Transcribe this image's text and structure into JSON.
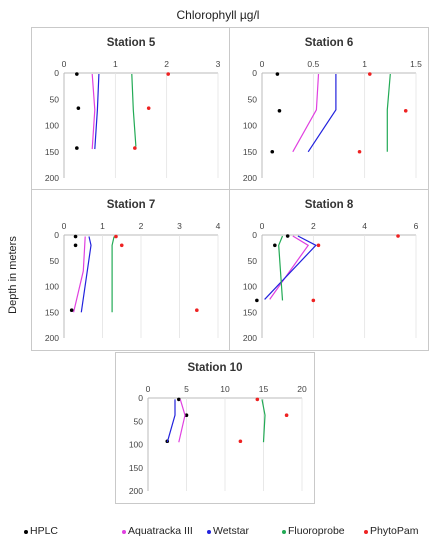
{
  "chart_data": {
    "type": "line",
    "title": "Chlorophyll µg/l",
    "ylabel": "Depth in meters",
    "legend_position": "bottom",
    "series_styles": [
      {
        "name": "HPLC",
        "color": "#000000",
        "kind": "point"
      },
      {
        "name": "Aquatracka III",
        "color": "#e040e0",
        "kind": "line"
      },
      {
        "name": "Wetstar",
        "color": "#2222dd",
        "kind": "line"
      },
      {
        "name": "Fluoroprobe",
        "color": "#22aa55",
        "kind": "line"
      },
      {
        "name": "PhytoPam",
        "color": "#ee2222",
        "kind": "point"
      }
    ],
    "panels": [
      {
        "title": "Station 5",
        "xlim": [
          0,
          3
        ],
        "xticks": [
          0,
          1,
          2,
          3
        ],
        "ylim": [
          0,
          200
        ],
        "yticks": [
          0,
          50,
          100,
          150,
          200
        ],
        "series": [
          {
            "name": "HPLC",
            "points": [
              [
                0.25,
                2
              ],
              [
                0.28,
                67
              ],
              [
                0.25,
                143
              ]
            ]
          },
          {
            "name": "Aquatracka III",
            "points": [
              [
                0.55,
                2
              ],
              [
                0.6,
                70
              ],
              [
                0.55,
                145
              ]
            ]
          },
          {
            "name": "Wetstar",
            "points": [
              [
                0.68,
                2
              ],
              [
                0.65,
                70
              ],
              [
                0.6,
                145
              ]
            ]
          },
          {
            "name": "Fluoroprobe",
            "points": [
              [
                1.32,
                2
              ],
              [
                1.35,
                70
              ],
              [
                1.4,
                140
              ]
            ]
          },
          {
            "name": "PhytoPam",
            "points": [
              [
                2.03,
                2
              ],
              [
                1.65,
                67
              ],
              [
                1.38,
                143
              ]
            ]
          }
        ]
      },
      {
        "title": "Station 6",
        "xlim": [
          0,
          1.5
        ],
        "xticks": [
          0,
          0.5,
          1,
          1.5
        ],
        "ylim": [
          0,
          200
        ],
        "yticks": [
          0,
          50,
          100,
          150,
          200
        ],
        "series": [
          {
            "name": "HPLC",
            "points": [
              [
                0.15,
                2
              ],
              [
                0.17,
                72
              ],
              [
                0.1,
                150
              ]
            ]
          },
          {
            "name": "Aquatracka III",
            "points": [
              [
                0.55,
                2
              ],
              [
                0.53,
                70
              ],
              [
                0.3,
                150
              ]
            ]
          },
          {
            "name": "Wetstar",
            "points": [
              [
                0.72,
                2
              ],
              [
                0.72,
                70
              ],
              [
                0.45,
                150
              ]
            ]
          },
          {
            "name": "Fluoroprobe",
            "points": [
              [
                1.25,
                2
              ],
              [
                1.22,
                70
              ],
              [
                1.22,
                150
              ]
            ]
          },
          {
            "name": "PhytoPam",
            "points": [
              [
                1.05,
                2
              ],
              [
                1.4,
                72
              ],
              [
                0.95,
                150
              ]
            ]
          }
        ]
      },
      {
        "title": "Station 7",
        "xlim": [
          0,
          4
        ],
        "xticks": [
          0,
          1,
          2,
          3,
          4
        ],
        "ylim": [
          0,
          200
        ],
        "yticks": [
          0,
          50,
          100,
          150,
          200
        ],
        "series": [
          {
            "name": "HPLC",
            "points": [
              [
                0.3,
                3
              ],
              [
                0.3,
                20
              ],
              [
                0.2,
                146
              ]
            ]
          },
          {
            "name": "Aquatracka III",
            "points": [
              [
                0.55,
                3
              ],
              [
                0.5,
                70
              ],
              [
                0.25,
                150
              ]
            ]
          },
          {
            "name": "Wetstar",
            "points": [
              [
                0.65,
                3
              ],
              [
                0.7,
                20
              ],
              [
                0.45,
                150
              ]
            ]
          },
          {
            "name": "Fluoroprobe",
            "points": [
              [
                1.3,
                3
              ],
              [
                1.25,
                20
              ],
              [
                1.25,
                150
              ]
            ]
          },
          {
            "name": "PhytoPam",
            "points": [
              [
                1.35,
                3
              ],
              [
                1.5,
                20
              ],
              [
                3.45,
                146
              ]
            ]
          }
        ]
      },
      {
        "title": "Station 8",
        "xlim": [
          0,
          6
        ],
        "xticks": [
          0,
          2,
          4,
          6
        ],
        "ylim": [
          0,
          200
        ],
        "yticks": [
          0,
          50,
          100,
          150,
          200
        ],
        "series": [
          {
            "name": "HPLC",
            "points": [
              [
                1,
                2
              ],
              [
                0.5,
                20
              ],
              [
                -0.2,
                127
              ]
            ]
          },
          {
            "name": "Aquatracka III",
            "points": [
              [
                1.2,
                2
              ],
              [
                1.8,
                20
              ],
              [
                0.3,
                125
              ]
            ]
          },
          {
            "name": "Wetstar",
            "points": [
              [
                1.4,
                2
              ],
              [
                2.1,
                20
              ],
              [
                0.1,
                125
              ]
            ]
          },
          {
            "name": "Fluoroprobe",
            "points": [
              [
                0.8,
                2
              ],
              [
                0.65,
                20
              ],
              [
                0.8,
                127
              ]
            ]
          },
          {
            "name": "PhytoPam",
            "points": [
              [
                5.3,
                2
              ],
              [
                2.2,
                20
              ],
              [
                2.0,
                127
              ]
            ]
          }
        ]
      },
      {
        "title": "Station 10",
        "xlim": [
          0,
          20
        ],
        "xticks": [
          0,
          5,
          10,
          15,
          20
        ],
        "ylim": [
          0,
          200
        ],
        "yticks": [
          0,
          50,
          100,
          150,
          200
        ],
        "series": [
          {
            "name": "HPLC",
            "points": [
              [
                4,
                3
              ],
              [
                5,
                37
              ],
              [
                2.5,
                93
              ]
            ]
          },
          {
            "name": "Aquatracka III",
            "points": [
              [
                4.2,
                3
              ],
              [
                4.8,
                37
              ],
              [
                4,
                95
              ]
            ]
          },
          {
            "name": "Wetstar",
            "points": [
              [
                3.5,
                3
              ],
              [
                3.5,
                37
              ],
              [
                2.5,
                95
              ]
            ]
          },
          {
            "name": "Fluoroprobe",
            "points": [
              [
                14.8,
                3
              ],
              [
                15.2,
                37
              ],
              [
                15,
                95
              ]
            ]
          },
          {
            "name": "PhytoPam",
            "points": [
              [
                14.2,
                3
              ],
              [
                18,
                37
              ],
              [
                12,
                93
              ]
            ]
          }
        ]
      }
    ]
  }
}
